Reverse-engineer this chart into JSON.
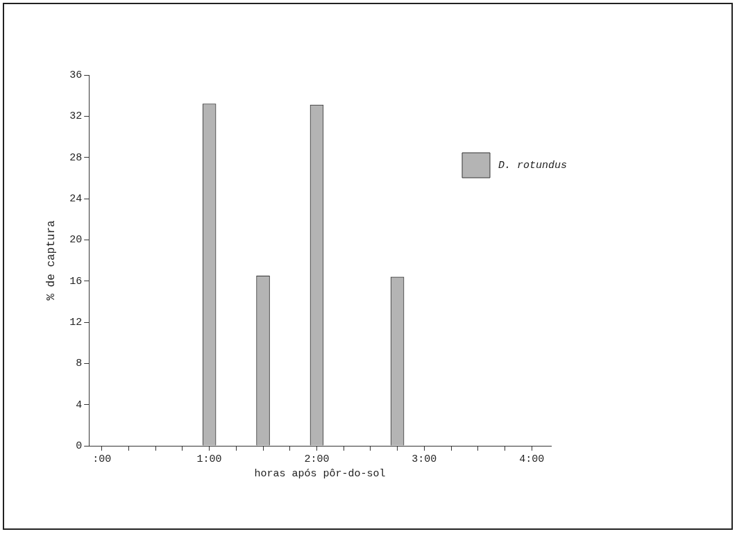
{
  "chart_data": {
    "type": "bar",
    "xlabel": "horas após pôr-do-sol",
    "ylabel": "% de captura",
    "x": [
      1,
      1.5,
      2,
      2.75
    ],
    "series": [
      {
        "name": "D. rotundus",
        "color": "#b4b4b4",
        "values": [
          33.2,
          16.5,
          33.1,
          16.4
        ]
      }
    ],
    "xlim": [
      -0.12,
      4.18
    ],
    "xticks": [
      {
        "value": 0,
        "label": ":00"
      },
      {
        "value": 0.25,
        "label": null
      },
      {
        "value": 0.5,
        "label": null
      },
      {
        "value": 0.75,
        "label": null
      },
      {
        "value": 1,
        "label": "1:00"
      },
      {
        "value": 1.25,
        "label": null
      },
      {
        "value": 1.5,
        "label": null
      },
      {
        "value": 1.75,
        "label": null
      },
      {
        "value": 2,
        "label": "2:00"
      },
      {
        "value": 2.25,
        "label": null
      },
      {
        "value": 2.5,
        "label": null
      },
      {
        "value": 2.75,
        "label": null
      },
      {
        "value": 3,
        "label": "3:00"
      },
      {
        "value": 3.25,
        "label": null
      },
      {
        "value": 3.5,
        "label": null
      },
      {
        "value": 3.75,
        "label": null
      },
      {
        "value": 4,
        "label": "4:00"
      }
    ],
    "ylim": [
      0,
      36
    ],
    "yticks": [
      0,
      4,
      8,
      12,
      16,
      20,
      24,
      28,
      32,
      36
    ],
    "grid": false,
    "legend": "top right"
  }
}
